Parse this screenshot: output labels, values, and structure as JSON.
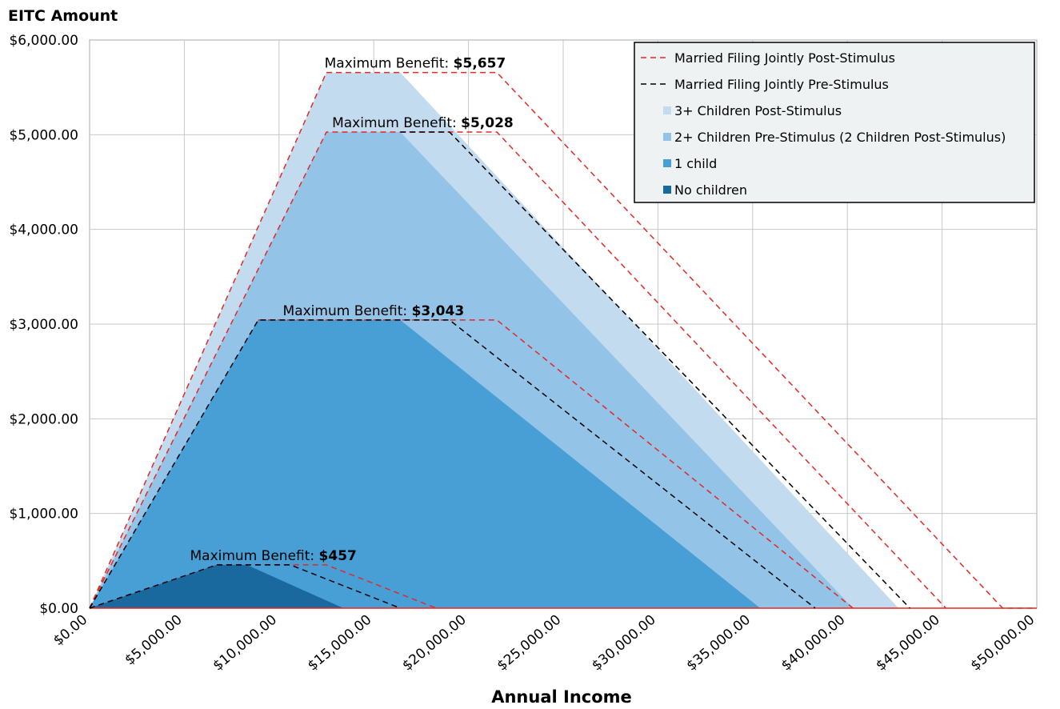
{
  "chart_data": {
    "type": "area",
    "ylabel": "EITC  Amount",
    "xlabel": "Annual Income",
    "xlim": [
      0,
      50000
    ],
    "ylim": [
      0,
      6000
    ],
    "x_ticks": [
      "$0.00",
      "$5,000.00",
      "$10,000.00",
      "$15,000.00",
      "$20,000.00",
      "$25,000.00",
      "$30,000.00",
      "$35,000.00",
      "$40,000.00",
      "$45,000.00",
      "$50,000.00"
    ],
    "y_ticks": [
      "$0.00",
      "$1,000.00",
      "$2,000.00",
      "$3,000.00",
      "$4,000.00",
      "$5,000.00",
      "$6,000.00"
    ],
    "grid": true,
    "legend_position": "top-right",
    "areas": [
      {
        "name": "3+ Children Post-Stimulus",
        "color": "#c2dbef",
        "points": [
          [
            0,
            0
          ],
          [
            12500,
            5657
          ],
          [
            16400,
            5657
          ],
          [
            42700,
            0
          ]
        ]
      },
      {
        "name": "2+ Children Pre-Stimulus (2 Children Post-Stimulus)",
        "color": "#93c3e6",
        "points": [
          [
            0,
            0
          ],
          [
            12500,
            5028
          ],
          [
            16400,
            5028
          ],
          [
            40300,
            0
          ]
        ]
      },
      {
        "name": "1 child",
        "color": "#479fd6",
        "points": [
          [
            0,
            0
          ],
          [
            8900,
            3043
          ],
          [
            16400,
            3043
          ],
          [
            35400,
            0
          ]
        ]
      },
      {
        "name": "No children",
        "color": "#19699f",
        "points": [
          [
            0,
            0
          ],
          [
            6700,
            457
          ],
          [
            8300,
            457
          ],
          [
            13400,
            0
          ]
        ]
      }
    ],
    "lines": [
      {
        "name": "Married Filing Jointly Post-Stimulus",
        "color": "#e32926",
        "segments": [
          [
            [
              0,
              0
            ],
            [
              12500,
              5657
            ],
            [
              21500,
              5657
            ],
            [
              48200,
              0
            ],
            [
              50000,
              0
            ]
          ],
          [
            [
              0,
              0
            ],
            [
              12500,
              5028
            ],
            [
              21500,
              5028
            ],
            [
              45200,
              0
            ]
          ],
          [
            [
              8900,
              3043
            ],
            [
              21500,
              3043
            ],
            [
              40300,
              0
            ]
          ],
          [
            [
              6700,
              457
            ],
            [
              12500,
              457
            ],
            [
              18300,
              0
            ]
          ]
        ]
      },
      {
        "name": "Married Filing Jointly Pre-Stimulus",
        "color": "#000000",
        "segments": [
          [
            [
              16400,
              5028
            ],
            [
              19000,
              5028
            ],
            [
              43300,
              0
            ]
          ],
          [
            [
              0,
              0
            ],
            [
              8900,
              3043
            ],
            [
              19000,
              3043
            ],
            [
              38300,
              0
            ]
          ],
          [
            [
              0,
              0
            ],
            [
              6700,
              457
            ],
            [
              10600,
              457
            ],
            [
              16400,
              0
            ]
          ]
        ]
      }
    ],
    "annotations": [
      {
        "label": "Maximum Benefit: ",
        "value": "$5,657",
        "x": 12400,
        "y": 5657
      },
      {
        "label": "Maximum Benefit: ",
        "value": "$5,028",
        "x": 12800,
        "y": 5028
      },
      {
        "label": "Maximum Benefit: ",
        "value": "$3,043",
        "x": 10200,
        "y": 3043
      },
      {
        "label": "Maximum Benefit: ",
        "value": "$457",
        "x": 5300,
        "y": 457
      }
    ]
  }
}
